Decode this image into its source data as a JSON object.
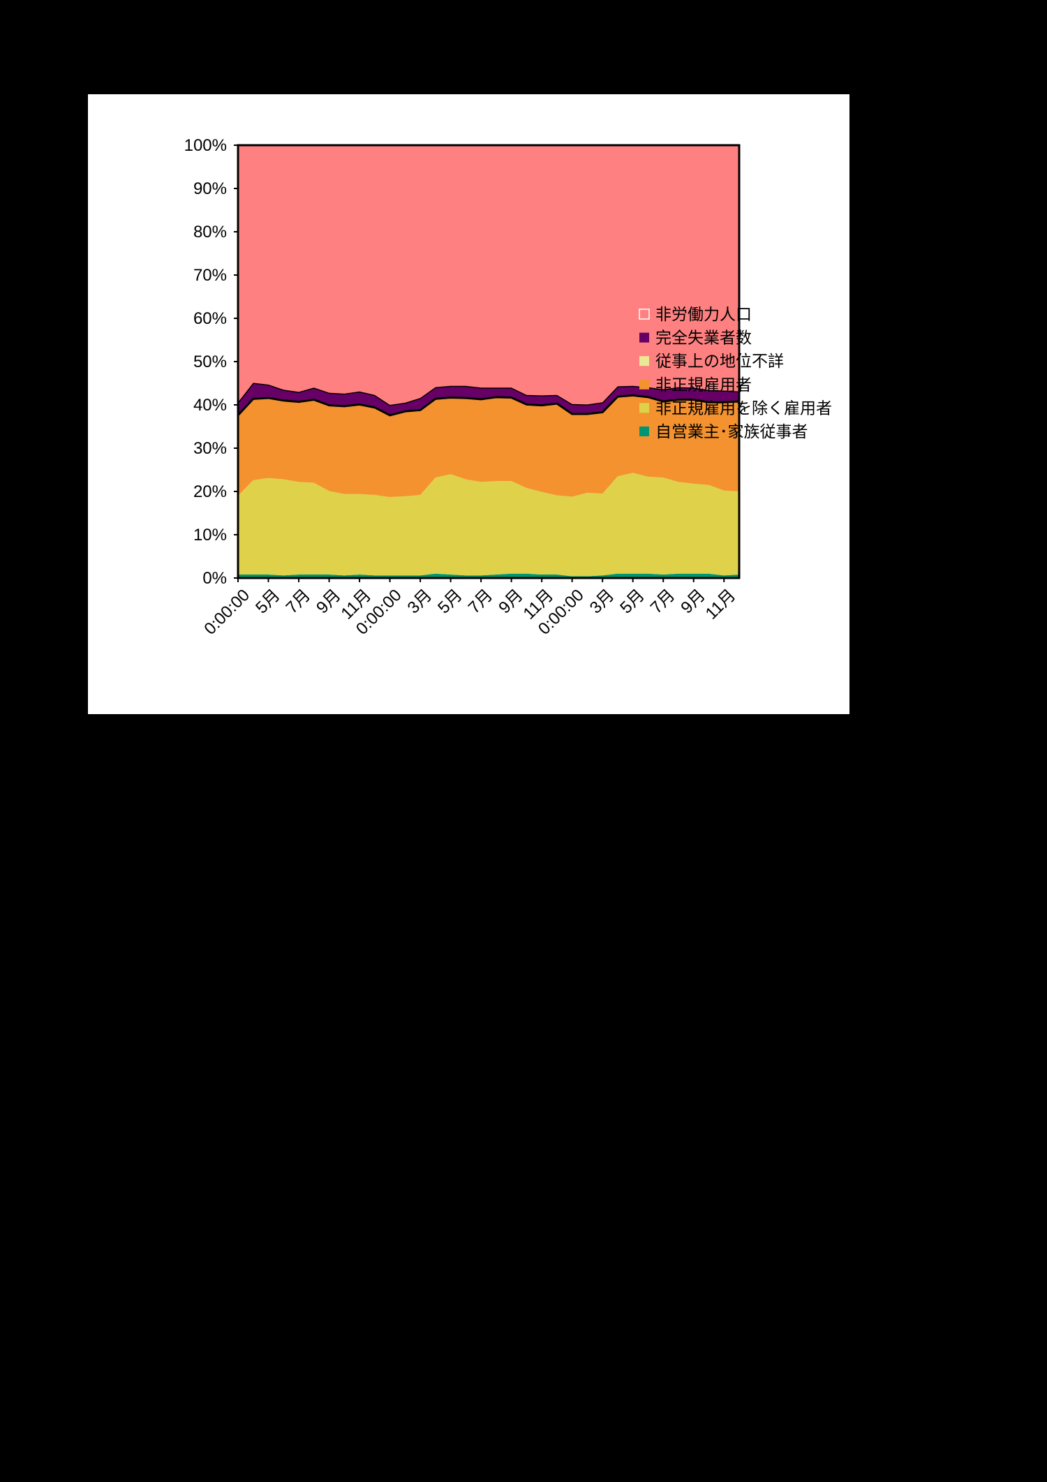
{
  "chart_data": {
    "type": "area",
    "stacked": "percent",
    "title": "",
    "xlabel": "",
    "ylabel": "",
    "ylim": [
      0,
      100
    ],
    "grid": false,
    "legend_position": "right",
    "x_tick_labels": [
      "0:00:00",
      "5月",
      "7月",
      "9月",
      "11月",
      "0:00:00",
      "3月",
      "5月",
      "7月",
      "9月",
      "11月",
      "0:00:00",
      "3月",
      "5月",
      "7月",
      "9月",
      "11月"
    ],
    "y_tick_labels": [
      "0%",
      "10%",
      "20%",
      "30%",
      "40%",
      "50%",
      "60%",
      "70%",
      "80%",
      "90%",
      "100%"
    ],
    "series": [
      {
        "name": "自営業主･家族従事者",
        "color": "#009673",
        "values": [
          0.8,
          0.8,
          0.8,
          0.6,
          0.8,
          0.8,
          0.8,
          0.6,
          0.8,
          0.6,
          0.6,
          0.6,
          0.6,
          1.0,
          0.8,
          0.6,
          0.6,
          0.8,
          1.0,
          1.0,
          0.8,
          0.8,
          0.4,
          0.4,
          0.6,
          1.0,
          1.0,
          1.0,
          0.8,
          1.0,
          1.0,
          1.0,
          0.6,
          0.8
        ]
      },
      {
        "name": "非正規雇用を除く雇用者",
        "color": "#dfd149",
        "values": [
          18.2,
          21.8,
          22.3,
          22.2,
          21.4,
          21.2,
          19.3,
          18.8,
          18.6,
          18.6,
          18.1,
          18.3,
          18.6,
          22.2,
          23.2,
          22.2,
          21.6,
          21.6,
          21.4,
          19.8,
          19.1,
          18.3,
          18.4,
          19.3,
          18.9,
          22.5,
          23.3,
          22.4,
          22.4,
          21.2,
          20.8,
          20.5,
          19.6,
          19.2
        ]
      },
      {
        "name": "非正規雇用者",
        "color": "#f3922f",
        "values": [
          18.4,
          18.6,
          18.3,
          18.0,
          18.3,
          19.0,
          19.6,
          20.1,
          20.5,
          20.0,
          18.7,
          19.4,
          19.4,
          18.0,
          17.5,
          18.6,
          18.9,
          19.2,
          19.1,
          19.1,
          19.8,
          21.0,
          18.9,
          18.0,
          18.6,
          18.2,
          17.7,
          18.2,
          17.4,
          18.8,
          19.2,
          18.9,
          20.2,
          20.6
        ]
      },
      {
        "name": "従事上の地位不詳",
        "color": "#ebe993",
        "values": [
          0.2,
          0.2,
          0.2,
          0.2,
          0.2,
          0.2,
          0.2,
          0.2,
          0.2,
          0.2,
          0.2,
          0.2,
          0.2,
          0.2,
          0.2,
          0.2,
          0.2,
          0.2,
          0.2,
          0.2,
          0.2,
          0.2,
          0.2,
          0.2,
          0.2,
          0.2,
          0.2,
          0.2,
          0.2,
          0.2,
          0.2,
          0.2,
          0.2,
          0.2
        ]
      },
      {
        "name": "完全失業者数",
        "color": "#660066",
        "values": [
          3.0,
          3.7,
          3.1,
          2.5,
          2.3,
          2.8,
          2.9,
          2.9,
          3.0,
          2.9,
          2.4,
          2.0,
          2.8,
          2.7,
          2.7,
          2.8,
          2.7,
          2.2,
          2.3,
          2.2,
          2.3,
          2.0,
          2.3,
          2.2,
          2.3,
          2.4,
          2.2,
          2.3,
          2.8,
          2.9,
          2.8,
          2.8,
          2.7,
          2.3
        ]
      },
      {
        "name": "非労働力人口",
        "color": "#ff8080",
        "values": [
          59.4,
          54.9,
          55.3,
          56.5,
          57.0,
          56.0,
          57.2,
          57.4,
          56.9,
          57.7,
          60.0,
          59.5,
          58.4,
          55.9,
          55.6,
          55.6,
          56.0,
          56.0,
          56.0,
          57.7,
          57.8,
          57.7,
          59.8,
          59.9,
          59.4,
          55.7,
          55.6,
          55.9,
          56.4,
          55.9,
          56.0,
          56.6,
          56.7,
          56.9
        ]
      }
    ]
  }
}
